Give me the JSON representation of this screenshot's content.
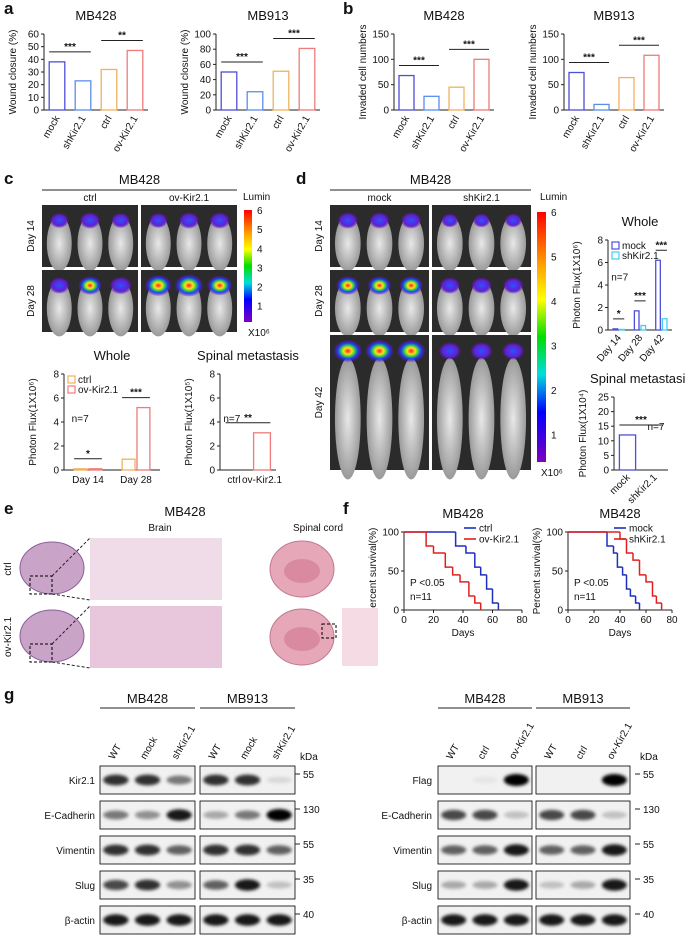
{
  "panel_labels": [
    "a",
    "b",
    "c",
    "d",
    "e",
    "f",
    "g"
  ],
  "chart_data": [
    {
      "type": "bar",
      "title": "MB428",
      "y_label": "Wound closure (%)",
      "categories": [
        "mock",
        "shKir2.1",
        "ctrl",
        "ov-Kir2.1"
      ],
      "values": [
        38,
        23,
        32,
        47
      ],
      "colors": [
        "#4f4fd9",
        "#5b8def",
        "#f0b25e",
        "#ef7b7b"
      ],
      "ylim": [
        0,
        60
      ],
      "yticks": [
        0,
        10,
        20,
        30,
        40,
        50,
        60
      ],
      "annotations": [
        "***",
        "**"
      ]
    },
    {
      "type": "bar",
      "title": "MB913",
      "y_label": "Wound closure (%)",
      "categories": [
        "mock",
        "shKir2.1",
        "ctrl",
        "ov-Kir2.1"
      ],
      "values": [
        50,
        24,
        51,
        81
      ],
      "colors": [
        "#4f4fd9",
        "#5b8def",
        "#f0b25e",
        "#ef7b7b"
      ],
      "ylim": [
        0,
        100
      ],
      "yticks": [
        0,
        20,
        40,
        60,
        80,
        100
      ],
      "annotations": [
        "***",
        "***"
      ]
    },
    {
      "type": "bar",
      "title": "MB428",
      "y_label": "Invaded cell numbers",
      "categories": [
        "mock",
        "shKir2.1",
        "ctrl",
        "ov-Kir2.1"
      ],
      "values": [
        68,
        27,
        45,
        100
      ],
      "colors": [
        "#4f4fd9",
        "#5b8def",
        "#f0b25e",
        "#ef7b7b"
      ],
      "ylim": [
        0,
        150
      ],
      "yticks": [
        0,
        50,
        100,
        150
      ],
      "annotations": [
        "***",
        "***"
      ]
    },
    {
      "type": "bar",
      "title": "MB913",
      "y_label": "Invaded cell numbers",
      "categories": [
        "mock",
        "shKir2.1",
        "ctrl",
        "ov-Kir2.1"
      ],
      "values": [
        74,
        11,
        64,
        108
      ],
      "colors": [
        "#4f4fd9",
        "#5b8def",
        "#f0b25e",
        "#ef7b7b"
      ],
      "ylim": [
        0,
        150
      ],
      "yticks": [
        0,
        50,
        100,
        150
      ],
      "annotations": [
        "***",
        "***"
      ]
    },
    {
      "type": "bar",
      "title": "Whole",
      "y_label": "Photon Flux(1X10⁶)",
      "categories": [
        "Day 14",
        "Day 28"
      ],
      "series": [
        {
          "name": "ctrl",
          "color": "#f0b25e",
          "values": [
            0.1,
            0.9
          ]
        },
        {
          "name": "ov-Kir2.1",
          "color": "#ef7b7b",
          "values": [
            0.1,
            5.2
          ]
        }
      ],
      "ylim": [
        0,
        8
      ],
      "yticks": [
        0,
        2,
        4,
        6,
        8
      ],
      "annotations": [
        "*",
        "***"
      ],
      "note": "n=7",
      "legend": "upper left"
    },
    {
      "type": "bar",
      "title": "Spinal metastasis",
      "y_label": "Photon Flux(1X10⁵)",
      "categories": [
        "ctrl",
        "ov-Kir2.1"
      ],
      "values": [
        0,
        3.1
      ],
      "colors": [
        "#f0b25e",
        "#ef7b7b"
      ],
      "ylim": [
        0,
        8
      ],
      "yticks": [
        0,
        2,
        4,
        6,
        8
      ],
      "annotations": [
        "**"
      ],
      "note": "n=7"
    },
    {
      "type": "bar",
      "title": "Whole",
      "y_label": "Photon Flux(1X10⁶)",
      "categories": [
        "Day 14",
        "Day 28",
        "Day 42"
      ],
      "series": [
        {
          "name": "mock",
          "color": "#4f4fd9",
          "values": [
            0.1,
            1.7,
            6.2
          ]
        },
        {
          "name": "shKir2.1",
          "color": "#3fd0f0",
          "values": [
            0.05,
            0.4,
            1.0
          ]
        }
      ],
      "ylim": [
        0,
        8
      ],
      "yticks": [
        0,
        2,
        4,
        6,
        8
      ],
      "annotations": [
        "*",
        "***",
        "***"
      ],
      "note": "n=7",
      "legend": "upper left"
    },
    {
      "type": "bar",
      "title": "Spinal metastasis",
      "y_label": "Photon Flux(1X10⁴)",
      "categories": [
        "mock",
        "shKir2.1"
      ],
      "values": [
        12,
        0
      ],
      "colors": [
        "#4f4fd9",
        "#3fd0f0"
      ],
      "ylim": [
        0,
        25
      ],
      "yticks": [
        0,
        5,
        10,
        15,
        20,
        25
      ],
      "annotations": [
        "***"
      ],
      "note": "n=7"
    },
    {
      "type": "step",
      "title": "MB428",
      "x_label": "Days",
      "y_label": "Percent survival(%)",
      "series": [
        {
          "name": "ctrl",
          "color": "#1f2fc0",
          "x": [
            0,
            35,
            42,
            48,
            52,
            56,
            60,
            64
          ],
          "values": [
            100,
            82,
            73,
            55,
            45,
            27,
            9,
            0
          ]
        },
        {
          "name": "ov-Kir2.1",
          "color": "#e02020",
          "x": [
            0,
            15,
            20,
            28,
            33,
            38,
            44,
            48,
            52
          ],
          "values": [
            100,
            82,
            73,
            55,
            45,
            36,
            18,
            9,
            0
          ]
        }
      ],
      "xlim": [
        0,
        80
      ],
      "xticks": [
        0,
        20,
        40,
        60,
        80
      ],
      "ylim": [
        0,
        100
      ],
      "yticks": [
        0,
        50,
        100
      ],
      "p_value": "P <0.05",
      "note": "n=11",
      "legend": "upper right"
    },
    {
      "type": "step",
      "title": "MB428",
      "x_label": "Days",
      "y_label": "Percent survival(%)",
      "series": [
        {
          "name": "mock",
          "color": "#1f2fc0",
          "x": [
            0,
            30,
            35,
            38,
            42,
            45,
            48,
            52,
            55
          ],
          "values": [
            100,
            82,
            73,
            55,
            45,
            27,
            18,
            9,
            0
          ]
        },
        {
          "name": "shKir2.1",
          "color": "#e02020",
          "x": [
            0,
            40,
            45,
            50,
            55,
            60,
            65,
            68,
            72
          ],
          "values": [
            100,
            91,
            73,
            64,
            45,
            36,
            18,
            9,
            0
          ]
        }
      ],
      "xlim": [
        0,
        80
      ],
      "xticks": [
        0,
        20,
        40,
        60,
        80
      ],
      "ylim": [
        0,
        100
      ],
      "yticks": [
        0,
        50,
        100
      ],
      "p_value": "P <0.05",
      "note": "n=11",
      "legend": "upper right"
    }
  ],
  "imaging": [
    {
      "title": "MB428",
      "groups": [
        "ctrl",
        "ov-Kir2.1"
      ],
      "rows": [
        "Day 14",
        "Day 28"
      ],
      "colorbar_label": "Lumin",
      "colorbar_ticks": [
        6,
        5,
        4,
        3,
        2,
        1
      ],
      "colorbar_unit": "X10⁶"
    },
    {
      "title": "MB428",
      "groups": [
        "mock",
        "shKir2.1"
      ],
      "rows": [
        "Day 14",
        "Day 28",
        "Day 42"
      ],
      "colorbar_label": "Lumin",
      "colorbar_ticks": [
        6,
        5,
        4,
        3,
        2,
        1
      ],
      "colorbar_unit": "X10⁶"
    }
  ],
  "histology": {
    "title": "MB428",
    "columns": [
      "Brain",
      "Spinal cord"
    ],
    "rows": [
      "ctrl",
      "ov-Kir2.1"
    ]
  },
  "blots": [
    {
      "cell_lines": [
        "MB428",
        "MB913"
      ],
      "lanes": [
        [
          "WT",
          "mock",
          "shKir2.1"
        ],
        [
          "WT",
          "mock",
          "shKir2.1"
        ]
      ],
      "unit": "kDa",
      "rows": [
        {
          "name": "Kir2.1",
          "kda": 55
        },
        {
          "name": "E-Cadherin",
          "kda": 130
        },
        {
          "name": "Vimentin",
          "kda": 55
        },
        {
          "name": "Slug",
          "kda": 35
        },
        {
          "name": "β-actin",
          "kda": 40
        }
      ]
    },
    {
      "cell_lines": [
        "MB428",
        "MB913"
      ],
      "lanes": [
        [
          "WT",
          "ctrl",
          "ov-Kir2.1"
        ],
        [
          "WT",
          "ctrl",
          "ov-Kir2.1"
        ]
      ],
      "unit": "kDa",
      "rows": [
        {
          "name": "Flag",
          "kda": 55
        },
        {
          "name": "E-Cadherin",
          "kda": 130
        },
        {
          "name": "Vimentin",
          "kda": 55
        },
        {
          "name": "Slug",
          "kda": 35
        },
        {
          "name": "β-actin",
          "kda": 40
        }
      ]
    }
  ]
}
